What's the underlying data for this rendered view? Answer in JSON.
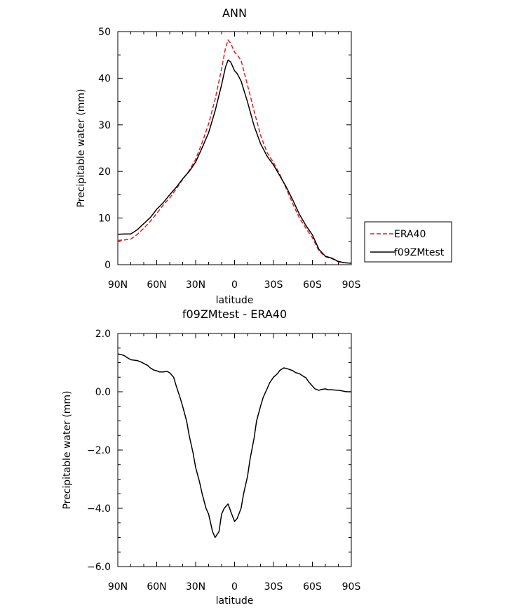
{
  "chart_data": [
    {
      "type": "line",
      "title": "ANN",
      "xlabel": "latitude",
      "ylabel": "Precipitable water (mm)",
      "xlim": [
        90,
        -90
      ],
      "ylim": [
        0,
        50
      ],
      "x_ticks": [
        90,
        60,
        30,
        0,
        -30,
        -60,
        -90
      ],
      "x_tick_labels": [
        "90N",
        "60N",
        "30N",
        "0",
        "30S",
        "60S",
        "90S"
      ],
      "y_ticks": [
        0,
        10,
        20,
        30,
        40,
        50
      ],
      "y_tick_labels": [
        "0",
        "10",
        "20",
        "30",
        "40",
        "50"
      ],
      "legend": {
        "placement": "right",
        "entries": [
          "ERA40",
          "f09ZMtest"
        ]
      },
      "series": [
        {
          "name": "ERA40",
          "color": "#e41a1c",
          "dash": "dashed",
          "x": [
            90,
            85,
            80,
            75,
            70,
            65,
            60,
            55,
            50,
            45,
            40,
            35,
            30,
            25,
            20,
            15,
            10,
            7,
            5,
            3,
            0,
            -2,
            -5,
            -10,
            -15,
            -20,
            -25,
            -30,
            -35,
            -40,
            -45,
            -50,
            -55,
            -60,
            -65,
            -70,
            -75,
            -80,
            -85,
            -90
          ],
          "y": [
            5.2,
            5.3,
            5.5,
            6.5,
            7.8,
            9.3,
            11.0,
            12.8,
            14.3,
            16.2,
            18.3,
            20.2,
            22.6,
            26.2,
            30.2,
            35.5,
            42.0,
            46.5,
            48.2,
            47.5,
            45.6,
            45.0,
            43.8,
            38.5,
            33.0,
            27.8,
            24.1,
            21.9,
            19.3,
            16.2,
            13.0,
            10.0,
            7.8,
            5.8,
            3.0,
            1.7,
            1.3,
            0.6,
            0.4,
            0.3
          ]
        },
        {
          "name": "f09ZMtest",
          "color": "#000000",
          "dash": "solid",
          "x": [
            90,
            85,
            80,
            75,
            70,
            65,
            60,
            55,
            50,
            45,
            40,
            35,
            30,
            25,
            20,
            15,
            10,
            7,
            5,
            3,
            0,
            -2,
            -5,
            -10,
            -15,
            -20,
            -25,
            -30,
            -35,
            -40,
            -45,
            -50,
            -55,
            -60,
            -65,
            -70,
            -75,
            -80,
            -85,
            -90
          ],
          "y": [
            6.5,
            6.6,
            6.6,
            7.5,
            8.8,
            10.1,
            11.9,
            13.3,
            15.0,
            16.6,
            18.4,
            20.0,
            22.0,
            25.1,
            28.3,
            33.0,
            38.6,
            42.4,
            43.9,
            43.5,
            41.6,
            41.0,
            39.4,
            34.9,
            29.8,
            26.0,
            23.3,
            21.4,
            19.0,
            16.6,
            13.8,
            10.8,
            8.4,
            6.4,
            3.3,
            1.8,
            1.4,
            0.7,
            0.4,
            0.3
          ]
        }
      ]
    },
    {
      "type": "line",
      "title": "f09ZMtest - ERA40",
      "xlabel": "latitude",
      "ylabel": "Precipitable water (mm)",
      "xlim": [
        90,
        -90
      ],
      "ylim": [
        -6,
        2
      ],
      "x_ticks": [
        90,
        60,
        30,
        0,
        -30,
        -60,
        -90
      ],
      "x_tick_labels": [
        "90N",
        "60N",
        "30N",
        "0",
        "30S",
        "60S",
        "90S"
      ],
      "y_ticks": [
        2,
        0,
        -2,
        -4,
        -6
      ],
      "y_tick_labels": [
        "2.0",
        "0.0",
        "-2.0",
        "-4.0",
        "-6.0"
      ],
      "series": [
        {
          "color": "#000000",
          "dash": "solid",
          "x": [
            90,
            87,
            85,
            83,
            80,
            75,
            72,
            70,
            67,
            65,
            62,
            60,
            58,
            55,
            52,
            50,
            47,
            45,
            42,
            40,
            37,
            35,
            32,
            30,
            27,
            25,
            22,
            20,
            17,
            15,
            12,
            10,
            8,
            5,
            3,
            0,
            -2,
            -5,
            -7,
            -10,
            -12,
            -15,
            -17,
            -20,
            -22,
            -25,
            -27,
            -30,
            -33,
            -35,
            -38,
            -40,
            -42,
            -45,
            -47,
            -50,
            -52,
            -55,
            -57,
            -60,
            -62,
            -65,
            -67,
            -70,
            -72,
            -75,
            -77,
            -80,
            -83,
            -85,
            -87,
            -90
          ],
          "y": [
            1.3,
            1.27,
            1.24,
            1.18,
            1.1,
            1.07,
            1.02,
            0.97,
            0.9,
            0.82,
            0.74,
            0.72,
            0.68,
            0.68,
            0.7,
            0.65,
            0.5,
            0.2,
            -0.2,
            -0.5,
            -1.0,
            -1.5,
            -2.1,
            -2.6,
            -3.1,
            -3.5,
            -4.0,
            -4.2,
            -4.8,
            -5.0,
            -4.8,
            -4.2,
            -4.0,
            -3.85,
            -4.1,
            -4.45,
            -4.35,
            -4.0,
            -3.5,
            -2.9,
            -2.3,
            -1.6,
            -1.0,
            -0.5,
            -0.2,
            0.1,
            0.3,
            0.5,
            0.62,
            0.74,
            0.82,
            0.8,
            0.77,
            0.72,
            0.66,
            0.62,
            0.56,
            0.48,
            0.35,
            0.2,
            0.1,
            0.05,
            0.08,
            0.1,
            0.07,
            0.07,
            0.06,
            0.05,
            0.03,
            0.01,
            0.0,
            0.0
          ]
        }
      ]
    }
  ]
}
